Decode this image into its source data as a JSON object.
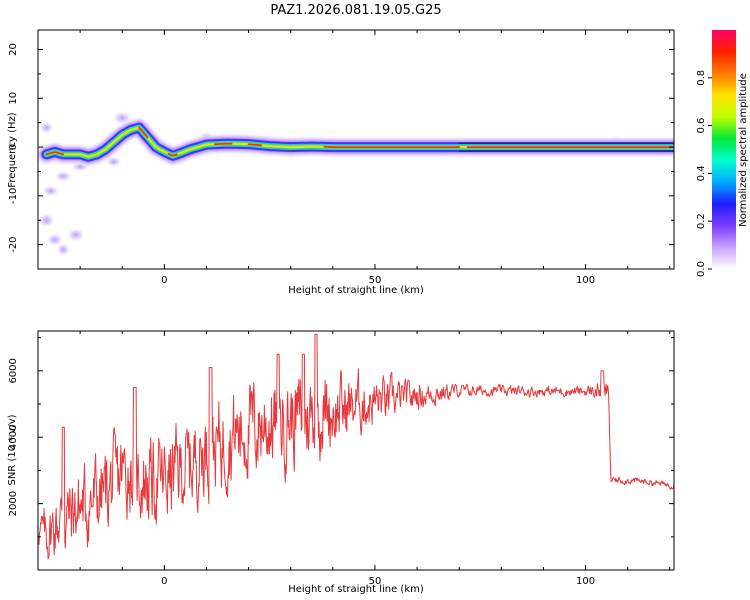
{
  "title": "PAZ1.2026.081.19.05.G25",
  "chart_data": [
    {
      "type": "heatmap",
      "title": "PAZ1.2026.081.19.05.G25",
      "xlabel": "Height of straight line (km)",
      "ylabel": "Frequency (Hz)",
      "xlim": [
        -30,
        121
      ],
      "ylim": [
        -25,
        24
      ],
      "xticks": [
        "0",
        "50",
        "100"
      ],
      "xtick_values": [
        0,
        50,
        100
      ],
      "yticks": [
        "-20",
        "-10",
        "0",
        "10",
        "20"
      ],
      "ytick_values": [
        -20,
        -10,
        0,
        10,
        20
      ],
      "ridge": {
        "x": [
          -28,
          -26,
          -24,
          -22,
          -20,
          -18,
          -16,
          -14,
          -12,
          -10,
          -8,
          -6,
          -4,
          -2,
          0,
          2,
          4,
          6,
          8,
          10,
          15,
          20,
          25,
          30,
          35,
          40,
          50,
          60,
          70,
          80,
          90,
          100,
          110,
          121
        ],
        "freq": [
          -1.5,
          -1,
          -1.5,
          -1.5,
          -1.5,
          -2,
          -1.5,
          -0.5,
          1,
          2.5,
          3.5,
          4,
          2,
          0,
          -1,
          -1.8,
          -1.2,
          -0.5,
          0,
          0.5,
          0.7,
          0.6,
          0.2,
          0,
          0.1,
          0,
          0,
          0,
          0,
          0,
          0,
          0,
          0,
          0
        ]
      },
      "scatter_blobs": [
        {
          "x": -27,
          "freq": -9
        },
        {
          "x": -28,
          "freq": -15
        },
        {
          "x": -26,
          "freq": -19
        },
        {
          "x": -24,
          "freq": -21
        },
        {
          "x": -21,
          "freq": -18
        },
        {
          "x": -24,
          "freq": -6
        },
        {
          "x": -20,
          "freq": -4
        },
        {
          "x": -12,
          "freq": -3
        },
        {
          "x": -28,
          "freq": 4
        },
        {
          "x": -10,
          "freq": 6
        },
        {
          "x": 10,
          "freq": 2
        },
        {
          "x": 107,
          "freq": 1
        }
      ]
    },
    {
      "type": "line",
      "xlabel": "Height of straight line (km)",
      "ylabel": "SNR (10 * v/v)",
      "xlim": [
        -30,
        121
      ],
      "ylim": [
        0,
        7200
      ],
      "xticks": [
        "0",
        "50",
        "100"
      ],
      "xtick_values": [
        0,
        50,
        100
      ],
      "yticks": [
        "2000",
        "4000",
        "6000"
      ],
      "ytick_values": [
        2000,
        4000,
        6000
      ],
      "color": "#e8383b",
      "series": [
        {
          "name": "SNR",
          "x": [
            -30,
            -28,
            -25,
            -22,
            -20,
            -18,
            -16,
            -14,
            -12,
            -10,
            -8,
            -6,
            -4,
            -2,
            0,
            3,
            6,
            9,
            12,
            15,
            18,
            21,
            24,
            27,
            30,
            33,
            36,
            39,
            42,
            45,
            48,
            51,
            54,
            57,
            60,
            63,
            66,
            70,
            80,
            90,
            100,
            104,
            105.5,
            106,
            110,
            115,
            121
          ],
          "mean": [
            1300,
            1000,
            1500,
            1700,
            1900,
            2000,
            2200,
            2400,
            2600,
            2900,
            3000,
            2800,
            2700,
            2700,
            2700,
            3000,
            3200,
            3500,
            3700,
            4000,
            4200,
            4300,
            4400,
            4500,
            4550,
            4600,
            4700,
            4800,
            4850,
            4950,
            5050,
            5100,
            5150,
            5200,
            5250,
            5300,
            5350,
            5400,
            5400,
            5380,
            5380,
            5400,
            5300,
            2700,
            2700,
            2650,
            2550
          ],
          "amp": [
            400,
            700,
            900,
            1000,
            1000,
            1100,
            1100,
            1100,
            1100,
            1100,
            1100,
            1100,
            1100,
            1100,
            1100,
            1100,
            1100,
            1100,
            1100,
            1200,
            1200,
            1200,
            1200,
            1200,
            1200,
            1150,
            1100,
            1000,
            900,
            800,
            700,
            600,
            500,
            400,
            350,
            300,
            250,
            150,
            130,
            130,
            130,
            250,
            250,
            90,
            90,
            80,
            80
          ],
          "peaks": [
            {
              "x": 36,
              "y": 7100
            },
            {
              "x": 33,
              "y": 6500
            },
            {
              "x": 27,
              "y": 6500
            },
            {
              "x": 11,
              "y": 6100
            },
            {
              "x": -7,
              "y": 5500
            },
            {
              "x": -24,
              "y": 4300
            },
            {
              "x": 104,
              "y": 6000
            }
          ]
        }
      ]
    }
  ],
  "colorbar": {
    "label": "Normalized spectral amplitude",
    "ticks": [
      "0.0",
      "0.2",
      "0.4",
      "0.6",
      "0.8"
    ],
    "tick_values": [
      0.0,
      0.2,
      0.4,
      0.6,
      0.8
    ],
    "range": [
      0,
      1
    ],
    "colors": [
      "#ffffff",
      "#c8a2ff",
      "#7a3cff",
      "#1e1eff",
      "#00aaff",
      "#00ffd0",
      "#00e83a",
      "#bfff00",
      "#ffe000",
      "#ff7a00",
      "#ff2200",
      "#ff0066"
    ]
  }
}
